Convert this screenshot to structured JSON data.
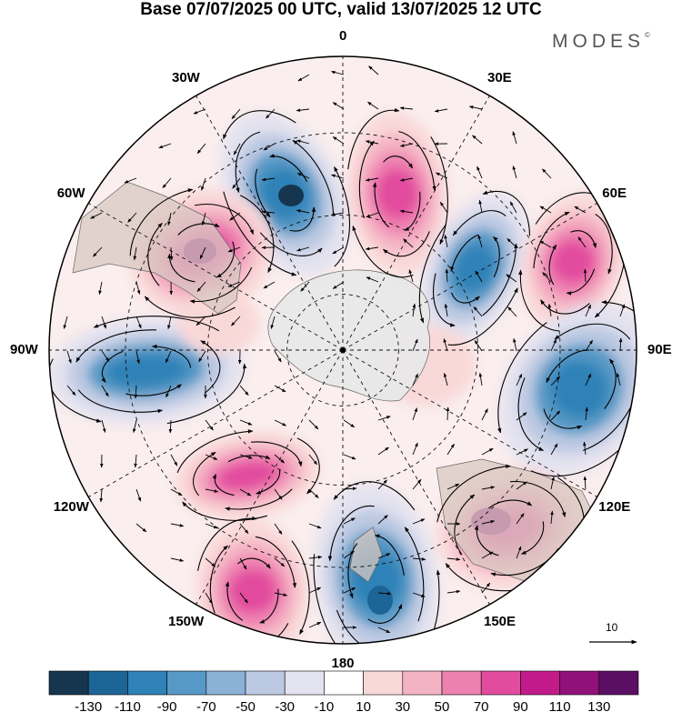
{
  "title": "Base 07/07/2025 00 UTC, valid 13/07/2025 12 UTC",
  "logo": {
    "text": "MODES",
    "mark": "©"
  },
  "longitude_labels": [
    {
      "text": "0",
      "angle": 0
    },
    {
      "text": "30E",
      "angle": 30
    },
    {
      "text": "60E",
      "angle": 60
    },
    {
      "text": "90E",
      "angle": 90
    },
    {
      "text": "120E",
      "angle": 120
    },
    {
      "text": "150E",
      "angle": 150
    },
    {
      "text": "180",
      "angle": 180
    },
    {
      "text": "150W",
      "angle": 210
    },
    {
      "text": "120W",
      "angle": 240
    },
    {
      "text": "90W",
      "angle": 270
    },
    {
      "text": "60W",
      "angle": 300
    },
    {
      "text": "30W",
      "angle": 330
    }
  ],
  "reference_vector": {
    "label": "10"
  },
  "colorbar": {
    "levels": [
      "-130",
      "-110",
      "-90",
      "-70",
      "-50",
      "-30",
      "-10",
      "10",
      "30",
      "50",
      "70",
      "90",
      "110",
      "130"
    ],
    "colors": [
      "#16354f",
      "#1d6596",
      "#2e82b7",
      "#5799c6",
      "#8bb1d6",
      "#bcc9e2",
      "#e3e2ef",
      "#ffffff",
      "#f9d8d8",
      "#f4b3c4",
      "#ee80b0",
      "#e24c9e",
      "#c31a8a",
      "#90117a",
      "#5a0f63"
    ]
  },
  "anomaly_colors": {
    "negative": "#2e82b7",
    "positive": "#e24c9e",
    "land": "#d8c8c2",
    "antarctica": "#e8e8e8"
  }
}
